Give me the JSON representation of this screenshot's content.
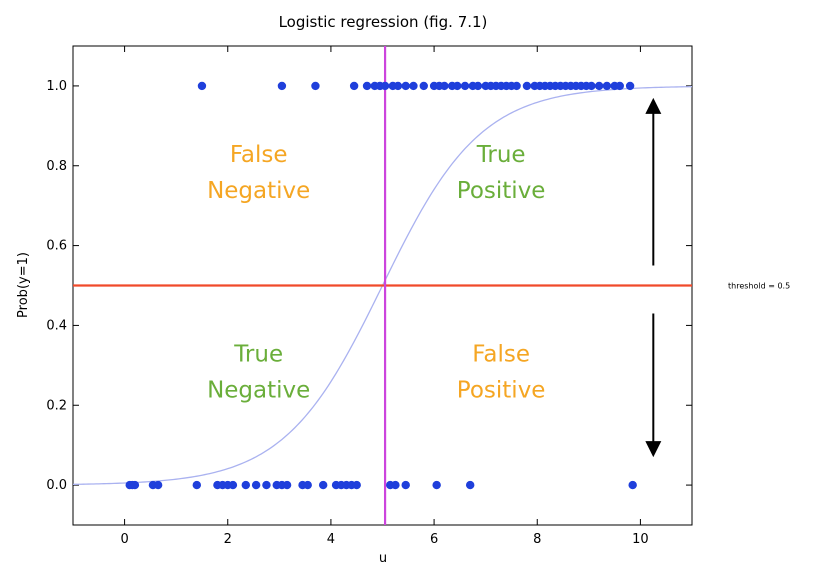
{
  "chart_data": {
    "type": "scatter",
    "title": "Logistic regression (fig. 7.1)",
    "xlabel": "u",
    "ylabel": "Prob(y=1)",
    "xlim": [
      -1,
      11
    ],
    "ylim": [
      -0.1,
      1.1
    ],
    "xticks": [
      0,
      2,
      4,
      6,
      8,
      10
    ],
    "yticks": [
      0.0,
      0.2,
      0.4,
      0.6,
      0.8,
      1.0
    ],
    "xtick_labels": [
      "0",
      "2",
      "4",
      "6",
      "8",
      "10"
    ],
    "ytick_labels": [
      "0.0",
      "0.2",
      "0.4",
      "0.6",
      "0.8",
      "1.0"
    ],
    "grid": false,
    "series": [
      {
        "kind": "points",
        "color": "#1f3fdb",
        "x": [
          0.1,
          0.15,
          0.2,
          0.55,
          0.65,
          1.4,
          1.8,
          1.9,
          2.0,
          2.1,
          2.35,
          2.55,
          2.75,
          2.95,
          3.05,
          3.15,
          3.45,
          3.55,
          3.85,
          4.1,
          4.2,
          4.3,
          4.4,
          4.5,
          5.15,
          5.25,
          5.45,
          6.05,
          6.7,
          9.85,
          1.5,
          3.05,
          3.7,
          4.45,
          4.7,
          4.85,
          4.95,
          5.05,
          5.2,
          5.3,
          5.45,
          5.6,
          5.8,
          6.0,
          6.1,
          6.2,
          6.35,
          6.45,
          6.6,
          6.75,
          6.85,
          7.0,
          7.1,
          7.2,
          7.3,
          7.4,
          7.5,
          7.6,
          7.8,
          7.95,
          8.05,
          8.15,
          8.25,
          8.35,
          8.45,
          8.55,
          8.65,
          8.75,
          8.85,
          8.95,
          9.05,
          9.2,
          9.35,
          9.5,
          9.6,
          9.8
        ],
        "y": [
          0,
          0,
          0,
          0,
          0,
          0,
          0,
          0,
          0,
          0,
          0,
          0,
          0,
          0,
          0,
          0,
          0,
          0,
          0,
          0,
          0,
          0,
          0,
          0,
          0,
          0,
          0,
          0,
          0,
          0,
          1,
          1,
          1,
          1,
          1,
          1,
          1,
          1,
          1,
          1,
          1,
          1,
          1,
          1,
          1,
          1,
          1,
          1,
          1,
          1,
          1,
          1,
          1,
          1,
          1,
          1,
          1,
          1,
          1,
          1,
          1,
          1,
          1,
          1,
          1,
          1,
          1,
          1,
          1,
          1,
          1,
          1,
          1,
          1,
          1,
          1
        ]
      },
      {
        "kind": "logistic-curve",
        "color": "#aab2f0",
        "center": 5.0,
        "steepness": 1.05
      }
    ],
    "threshold": {
      "value": 0.5,
      "color": "#f04a2a",
      "label": "threshold = 0.5"
    },
    "decision_boundary": {
      "value": 5.05,
      "color": "#cc44dd"
    },
    "quadrant_labels": [
      {
        "lines": [
          "False",
          "Negative"
        ],
        "color": "#f5a623",
        "x": 2.6,
        "y": 0.8
      },
      {
        "lines": [
          "True",
          "Positive"
        ],
        "color": "#6aae3a",
        "x": 7.3,
        "y": 0.8
      },
      {
        "lines": [
          "True",
          "Negative"
        ],
        "color": "#6aae3a",
        "x": 2.6,
        "y": 0.3
      },
      {
        "lines": [
          "False",
          "Positive"
        ],
        "color": "#f5a623",
        "x": 7.3,
        "y": 0.3
      }
    ],
    "arrows": [
      {
        "direction": "up",
        "x": 10.25,
        "y_from": 0.55,
        "y_to": 0.95
      },
      {
        "direction": "down",
        "x": 10.25,
        "y_from": 0.43,
        "y_to": 0.09
      }
    ]
  }
}
